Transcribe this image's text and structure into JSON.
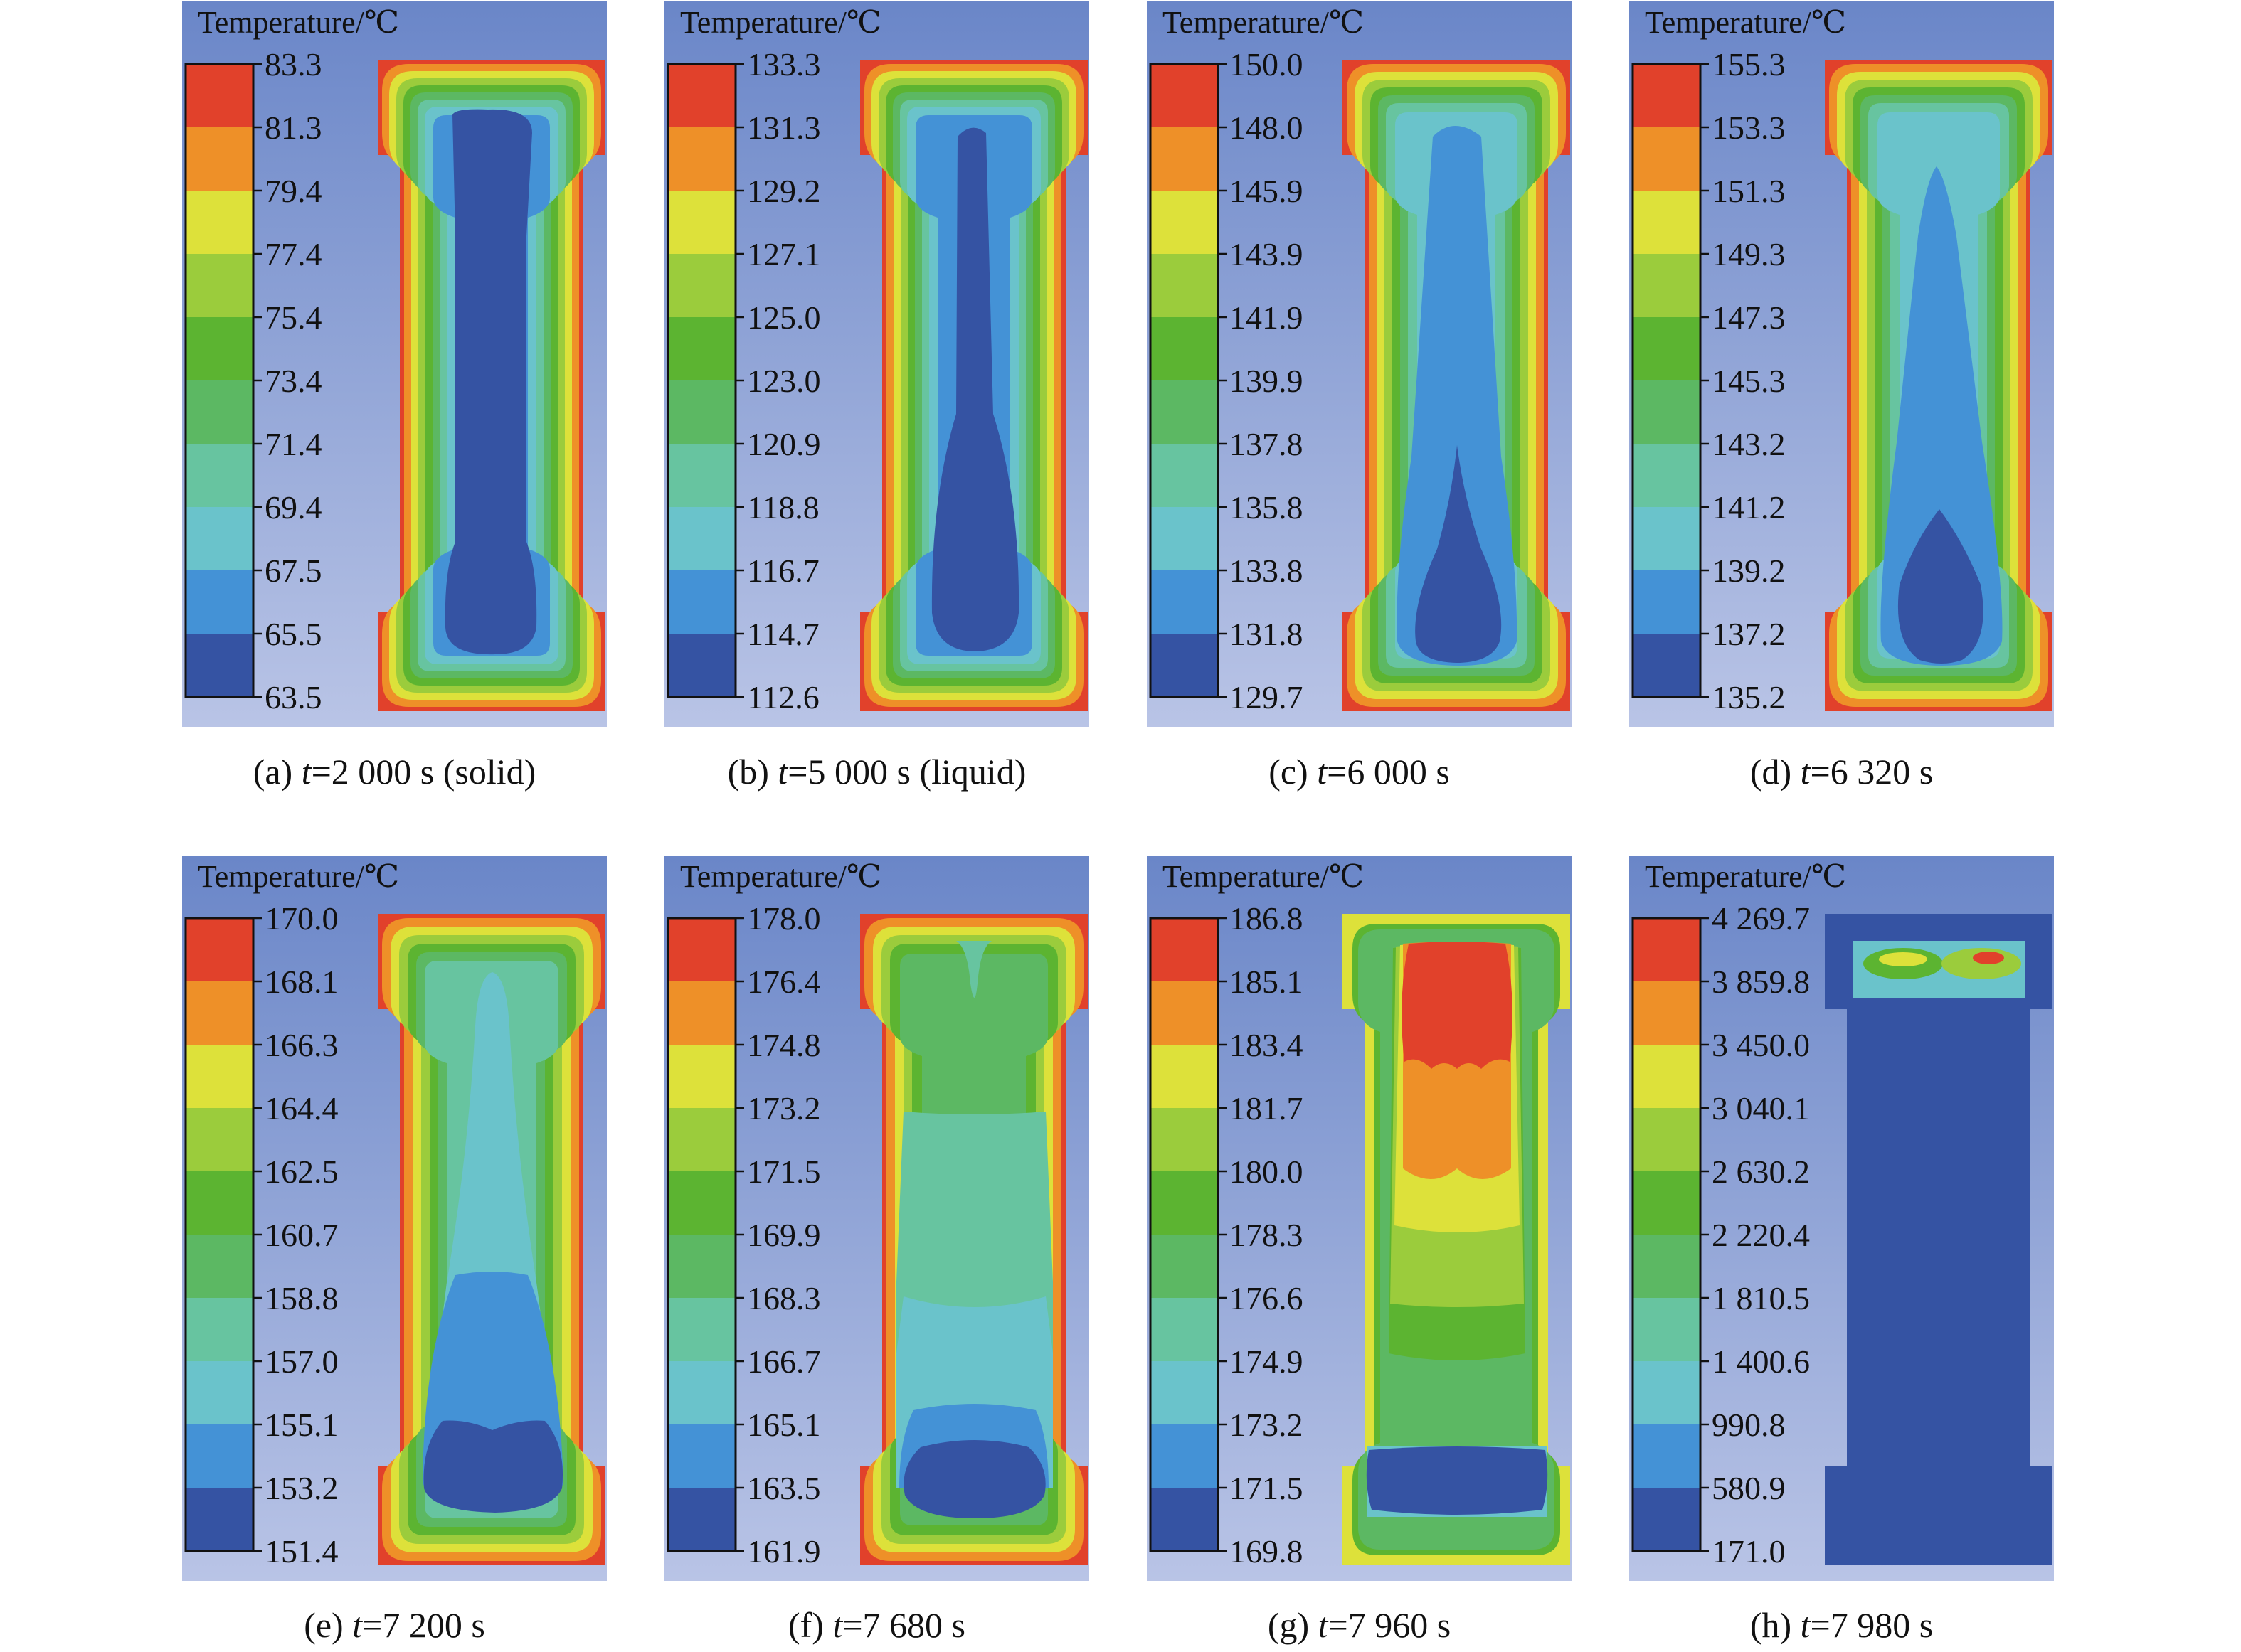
{
  "legend_title": "Temperature/℃",
  "colors": {
    "bands": [
      "#3553a3",
      "#4492d6",
      "#6ac3cb",
      "#67c4a0",
      "#5cb863",
      "#5cb431",
      "#9bcc3c",
      "#dde13a",
      "#ee9028",
      "#e1412b"
    ],
    "background_top": "#6a86c8",
    "background_bottom": "#b9c4e6"
  },
  "panels": [
    {
      "id": "a",
      "scale": [
        "83.3",
        "81.3",
        "79.4",
        "77.4",
        "75.4",
        "73.4",
        "71.4",
        "69.4",
        "67.5",
        "65.5",
        "63.5"
      ],
      "caption": {
        "prefix": "(a) ",
        "var": "t",
        "rest": "=2 000 s (solid)"
      }
    },
    {
      "id": "b",
      "scale": [
        "133.3",
        "131.3",
        "129.2",
        "127.1",
        "125.0",
        "123.0",
        "120.9",
        "118.8",
        "116.7",
        "114.7",
        "112.6"
      ],
      "caption": {
        "prefix": "(b) ",
        "var": "t",
        "rest": "=5 000 s (liquid)"
      }
    },
    {
      "id": "c",
      "scale": [
        "150.0",
        "148.0",
        "145.9",
        "143.9",
        "141.9",
        "139.9",
        "137.8",
        "135.8",
        "133.8",
        "131.8",
        "129.7"
      ],
      "caption": {
        "prefix": "(c) ",
        "var": "t",
        "rest": "=6 000 s"
      }
    },
    {
      "id": "d",
      "scale": [
        "155.3",
        "153.3",
        "151.3",
        "149.3",
        "147.3",
        "145.3",
        "143.2",
        "141.2",
        "139.2",
        "137.2",
        "135.2"
      ],
      "caption": {
        "prefix": "(d) ",
        "var": "t",
        "rest": "=6 320 s"
      }
    },
    {
      "id": "e",
      "scale": [
        "170.0",
        "168.1",
        "166.3",
        "164.4",
        "162.5",
        "160.7",
        "158.8",
        "157.0",
        "155.1",
        "153.2",
        "151.4"
      ],
      "caption": {
        "prefix": "(e) ",
        "var": "t",
        "rest": "=7 200 s"
      }
    },
    {
      "id": "f",
      "scale": [
        "178.0",
        "176.4",
        "174.8",
        "173.2",
        "171.5",
        "169.9",
        "168.3",
        "166.7",
        "165.1",
        "163.5",
        "161.9"
      ],
      "caption": {
        "prefix": "(f) ",
        "var": "t",
        "rest": "=7 680 s"
      }
    },
    {
      "id": "g",
      "scale": [
        "186.8",
        "185.1",
        "183.4",
        "181.7",
        "180.0",
        "178.3",
        "176.6",
        "174.9",
        "173.2",
        "171.5",
        "169.8"
      ],
      "caption": {
        "prefix": "(g) ",
        "var": "t",
        "rest": "=7 960 s"
      }
    },
    {
      "id": "h",
      "scale": [
        "4 269.7",
        "3 859.8",
        "3 450.0",
        "3 040.1",
        "2 630.2",
        "2 220.4",
        "1 810.5",
        "1 400.6",
        "990.8",
        "580.9",
        "171.0"
      ],
      "caption": {
        "prefix": "(h) ",
        "var": "t",
        "rest": "=7 980 s"
      }
    }
  ]
}
